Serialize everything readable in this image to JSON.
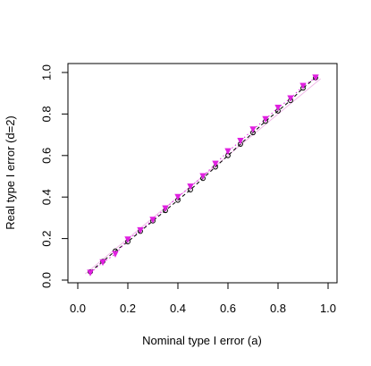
{
  "chart_data": {
    "type": "scatter",
    "xlabel": "Nominal type I error (a)",
    "ylabel": "Real type I error (d=2)",
    "xlim": [
      0.0,
      1.0
    ],
    "ylim": [
      0.0,
      1.0
    ],
    "xticks": [
      "0.0",
      "0.2",
      "0.4",
      "0.6",
      "0.8",
      "1.0"
    ],
    "yticks": [
      "0.0",
      "0.2",
      "0.4",
      "0.6",
      "0.8",
      "1.0"
    ],
    "grid": false,
    "reference_line": {
      "x": [
        0.03,
        0.97
      ],
      "y": [
        0.03,
        0.97
      ],
      "color": "#f0b8e8"
    },
    "series": [
      {
        "marker": "circle",
        "line": "dashed",
        "color": "#000000",
        "x": [
          0.05,
          0.1,
          0.15,
          0.2,
          0.25,
          0.3,
          0.35,
          0.4,
          0.45,
          0.5,
          0.55,
          0.6,
          0.65,
          0.7,
          0.75,
          0.8,
          0.85,
          0.9,
          0.95
        ],
        "y": [
          0.04,
          0.09,
          0.14,
          0.185,
          0.235,
          0.285,
          0.335,
          0.385,
          0.435,
          0.49,
          0.545,
          0.6,
          0.655,
          0.71,
          0.765,
          0.815,
          0.865,
          0.925,
          0.975
        ]
      },
      {
        "marker": "triangle",
        "line": "dotted",
        "color": "#e020e0",
        "x": [
          0.05,
          0.1,
          0.15,
          0.2,
          0.25,
          0.3,
          0.35,
          0.4,
          0.45,
          0.5,
          0.55,
          0.6,
          0.65,
          0.7,
          0.75,
          0.8,
          0.85,
          0.9,
          0.95
        ],
        "y": [
          0.035,
          0.085,
          0.125,
          0.195,
          0.24,
          0.29,
          0.345,
          0.4,
          0.45,
          0.5,
          0.56,
          0.62,
          0.67,
          0.725,
          0.775,
          0.83,
          0.875,
          0.935,
          0.975
        ]
      }
    ]
  }
}
